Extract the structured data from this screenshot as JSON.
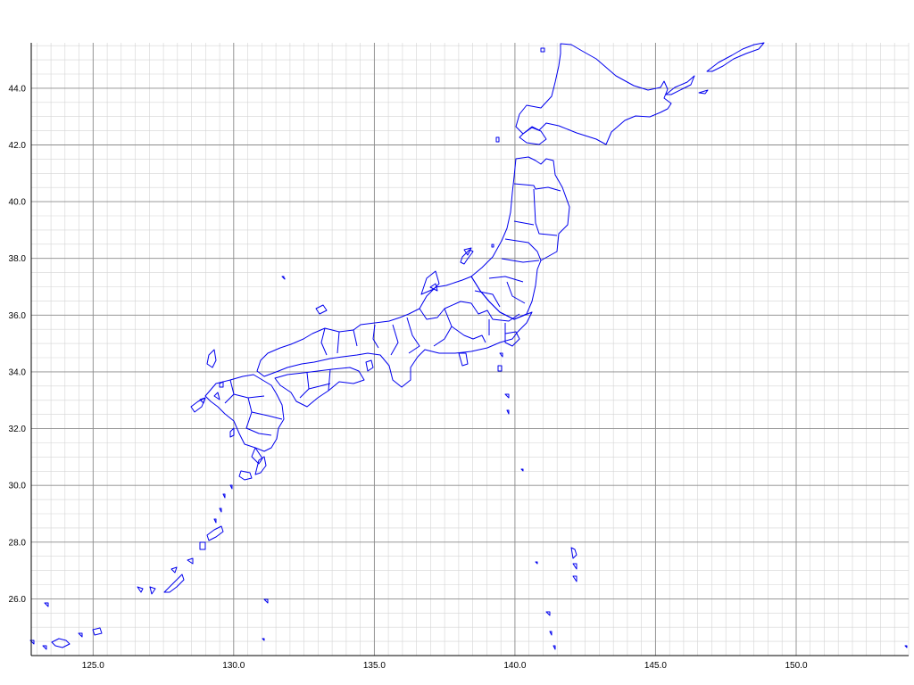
{
  "map": {
    "lon_range": [
      122.8,
      154.0
    ],
    "lat_range": [
      24.0,
      45.6
    ],
    "x_tick_labels": [
      "125.0",
      "130.0",
      "135.0",
      "140.0",
      "145.0",
      "150.0"
    ],
    "y_tick_labels": [
      "44.0",
      "42.0",
      "40.0",
      "38.0",
      "36.0",
      "34.0",
      "32.0",
      "30.0",
      "28.0",
      "26.0"
    ],
    "x_ticks": [
      125.0,
      130.0,
      135.0,
      140.0,
      145.0,
      150.0
    ],
    "y_ticks": [
      44.0,
      42.0,
      40.0,
      38.0,
      36.0,
      34.0,
      32.0,
      30.0,
      28.0,
      26.0
    ],
    "colors": {
      "coastline": "#0000ee",
      "major_grid": "#8c8c8c",
      "minor_grid": "#d4d4d4",
      "axis": "#000000"
    }
  }
}
